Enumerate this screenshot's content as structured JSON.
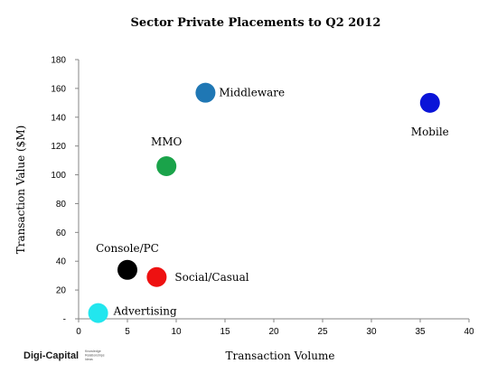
{
  "chart_data": {
    "type": "scatter",
    "title": "Sector Private Placements to Q2 2012",
    "xlabel": "Transaction Volume",
    "ylabel": "Transaction Value ($M)",
    "xlim": [
      0,
      40
    ],
    "ylim": [
      0,
      180
    ],
    "x_ticks": [
      "0",
      "5",
      "10",
      "15",
      "20",
      "25",
      "30",
      "35",
      "40"
    ],
    "y_ticks": [
      "-",
      "20",
      "40",
      "60",
      "80",
      "100",
      "120",
      "140",
      "160",
      "180"
    ],
    "grid": false,
    "legend": "none",
    "points": [
      {
        "label": "Middleware",
        "x": 13,
        "y": 157,
        "color": "#1f77b4"
      },
      {
        "label": "Mobile",
        "x": 36,
        "y": 150,
        "color": "#0a14d8"
      },
      {
        "label": "MMO",
        "x": 9,
        "y": 106,
        "color": "#1aa34a"
      },
      {
        "label": "Console/PC",
        "x": 5,
        "y": 34,
        "color": "#000000"
      },
      {
        "label": "Social/Casual",
        "x": 8,
        "y": 29,
        "color": "#ee1111"
      },
      {
        "label": "Advertising",
        "x": 2,
        "y": 4,
        "color": "#22e6ee"
      }
    ]
  },
  "logo": {
    "name": "Digi-Capital",
    "tagline": [
      "Knowledge",
      "Relationships",
      "Ideas"
    ]
  }
}
